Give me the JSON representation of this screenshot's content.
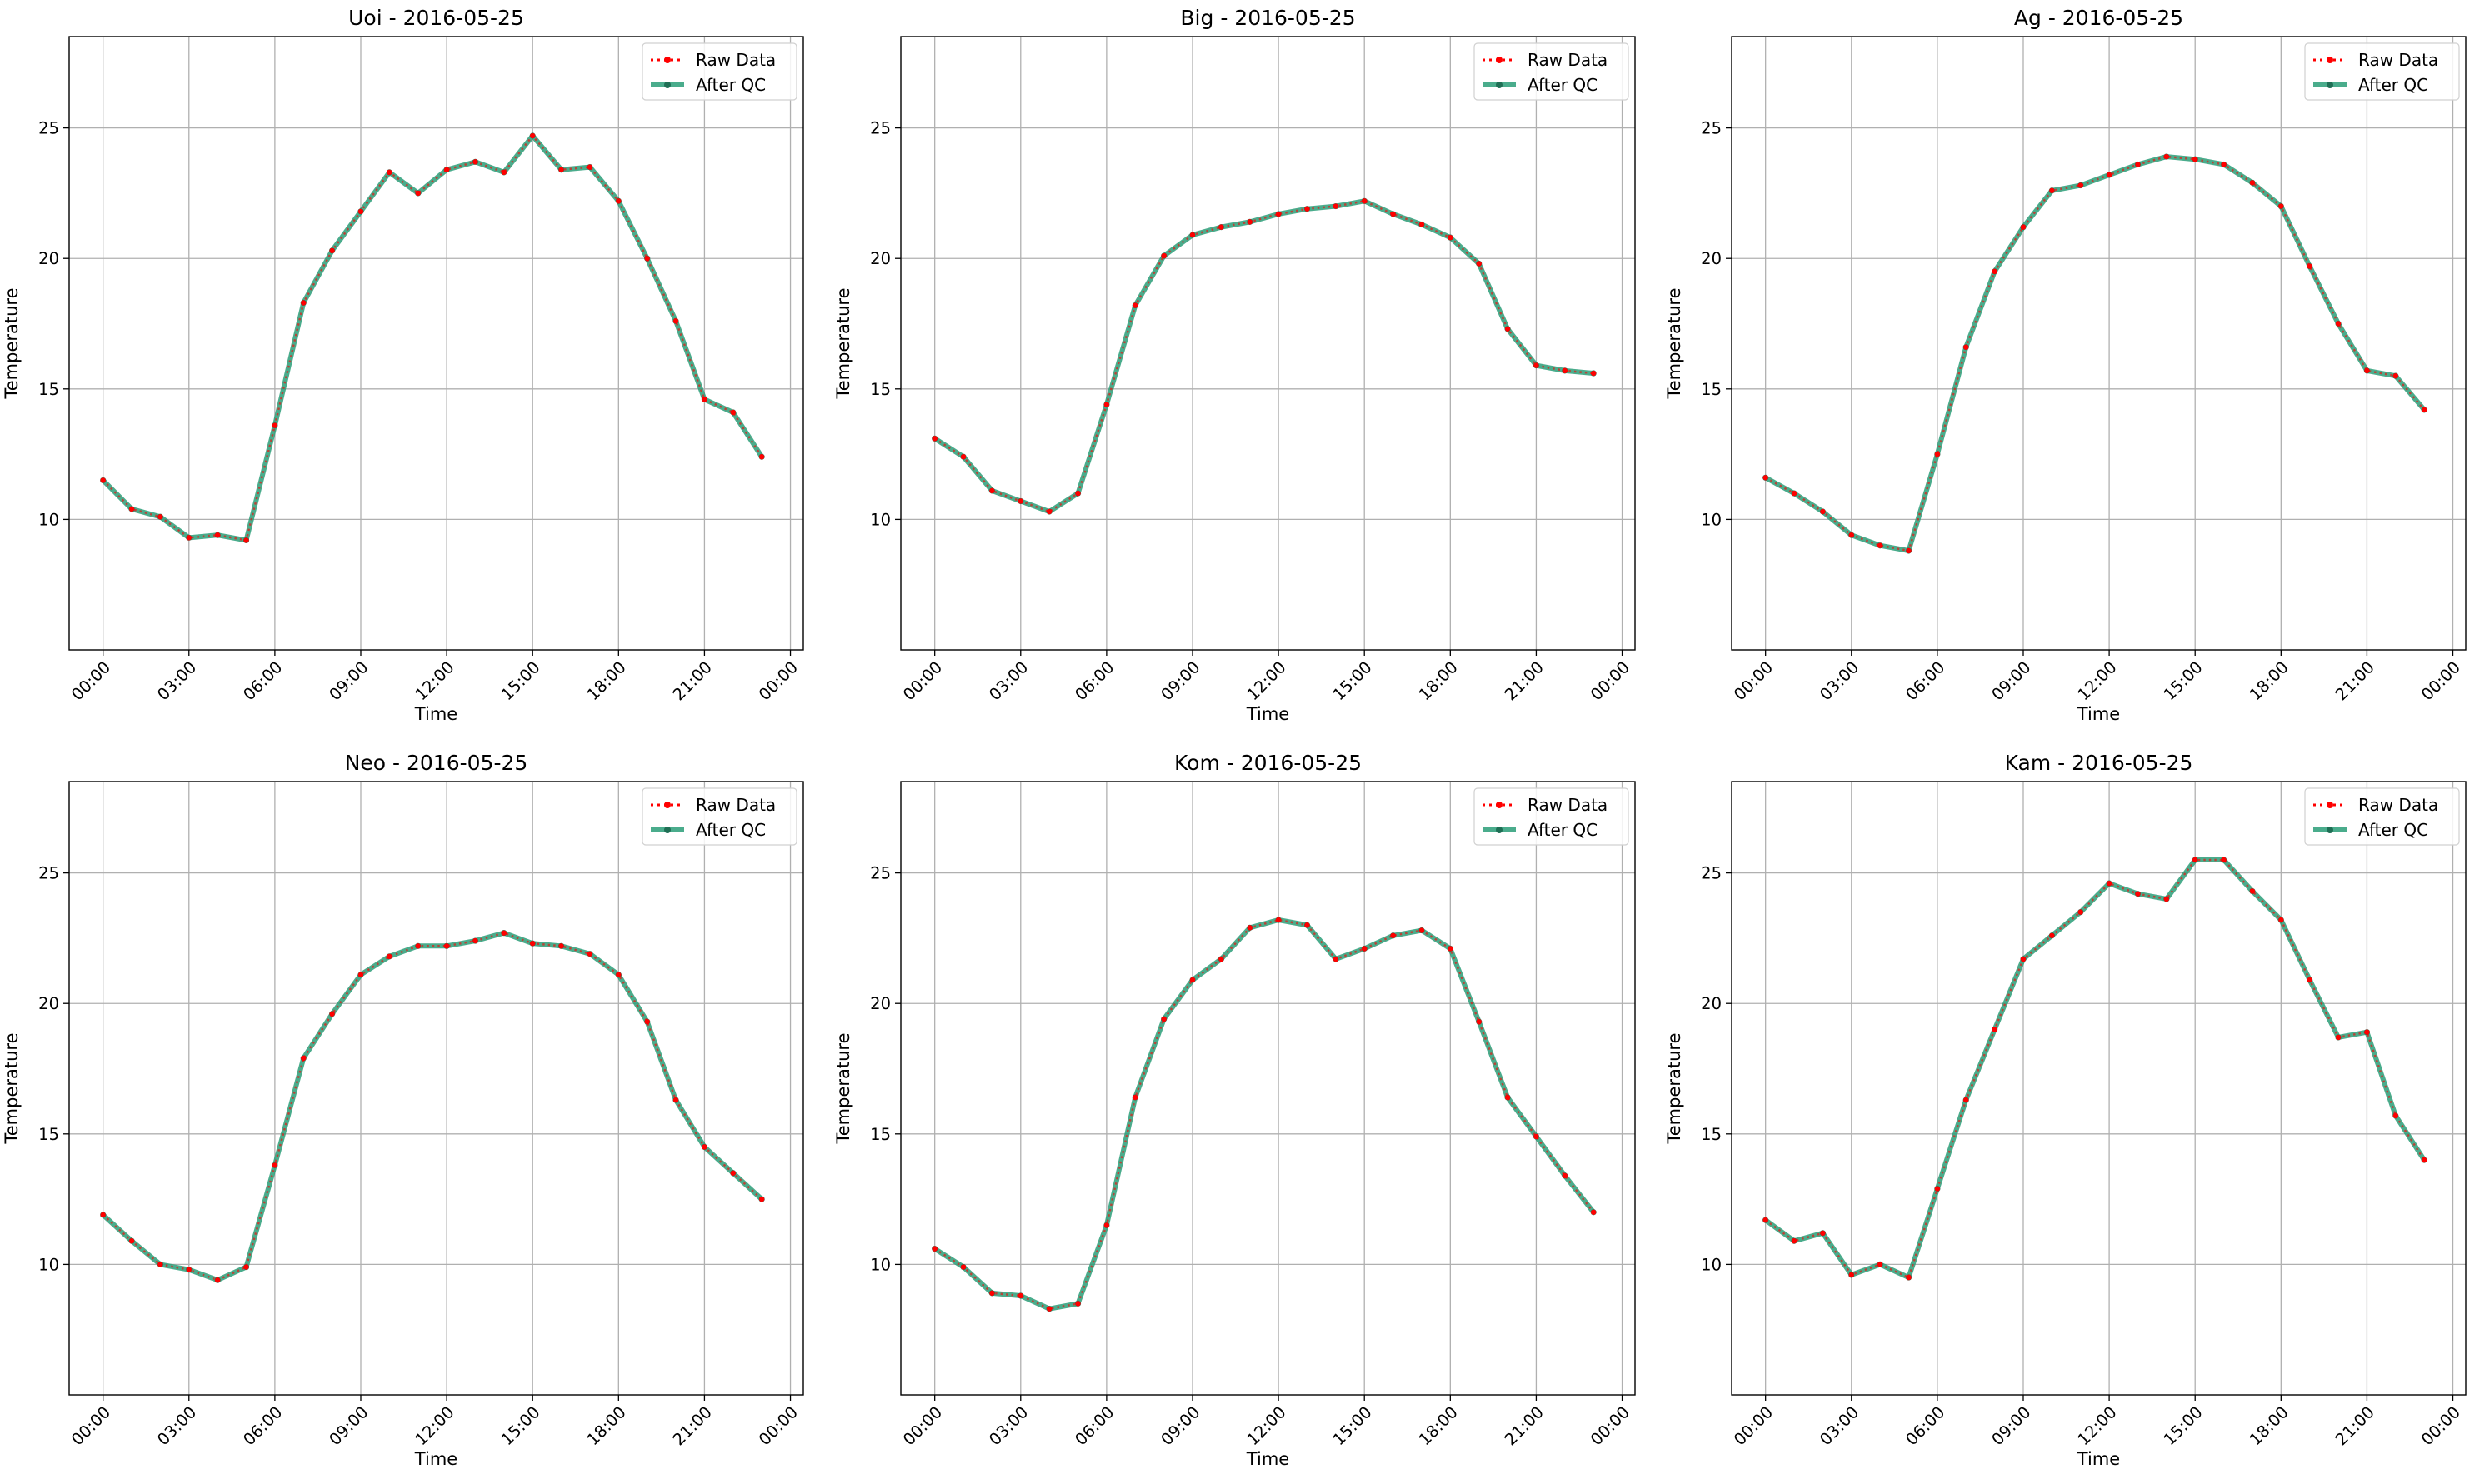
{
  "figure": {
    "background": "#ffffff"
  },
  "colors": {
    "raw": "#ff0000",
    "qc": "#2a9d78",
    "qc_marker": "#1f6f55",
    "grid": "#b0b0b0",
    "axes": "#000000",
    "legend_border": "#d0d0d0"
  },
  "legend": {
    "placement": "top-right",
    "entries": [
      "Raw Data",
      "After QC"
    ]
  },
  "chart_data": [
    {
      "type": "line",
      "title": "Uoi - 2016-05-25",
      "xlabel": "Time",
      "ylabel": "Temperature",
      "ylim": [
        5.0,
        28.5
      ],
      "xlim": [
        "2016-05-24 22:49",
        "2016-05-26 00:27"
      ],
      "grid": true,
      "x_ticks": [
        "00:00",
        "03:00",
        "06:00",
        "09:00",
        "12:00",
        "15:00",
        "18:00",
        "21:00",
        "00:00"
      ],
      "y_ticks": [
        10,
        15,
        20,
        25
      ],
      "x": [
        "00:00",
        "01:00",
        "02:00",
        "03:00",
        "04:00",
        "05:00",
        "06:00",
        "07:00",
        "08:00",
        "09:00",
        "10:00",
        "11:00",
        "12:00",
        "13:00",
        "14:00",
        "15:00",
        "16:00",
        "17:00",
        "18:00",
        "19:00",
        "20:00",
        "21:00",
        "22:00",
        "23:00"
      ],
      "series": [
        {
          "name": "Raw Data",
          "values": [
            11.5,
            10.4,
            10.1,
            9.3,
            9.4,
            9.2,
            13.6,
            18.3,
            20.3,
            21.8,
            23.3,
            22.5,
            23.4,
            23.7,
            23.3,
            24.7,
            23.4,
            23.5,
            22.2,
            20.0,
            17.6,
            14.6,
            14.1,
            12.4
          ]
        },
        {
          "name": "After QC",
          "values": [
            11.5,
            10.4,
            10.1,
            9.3,
            9.4,
            9.2,
            13.6,
            18.3,
            20.3,
            21.8,
            23.3,
            22.5,
            23.4,
            23.7,
            23.3,
            24.7,
            23.4,
            23.5,
            22.2,
            20.0,
            17.6,
            14.6,
            14.1,
            12.4
          ]
        }
      ]
    },
    {
      "type": "line",
      "title": "Big - 2016-05-25",
      "xlabel": "Time",
      "ylabel": "Temperature",
      "ylim": [
        5.0,
        28.5
      ],
      "xlim": [
        "2016-05-24 22:49",
        "2016-05-26 00:27"
      ],
      "grid": true,
      "x_ticks": [
        "00:00",
        "03:00",
        "06:00",
        "09:00",
        "12:00",
        "15:00",
        "18:00",
        "21:00",
        "00:00"
      ],
      "y_ticks": [
        10,
        15,
        20,
        25
      ],
      "x": [
        "00:00",
        "01:00",
        "02:00",
        "03:00",
        "04:00",
        "05:00",
        "06:00",
        "07:00",
        "08:00",
        "09:00",
        "10:00",
        "11:00",
        "12:00",
        "13:00",
        "14:00",
        "15:00",
        "16:00",
        "17:00",
        "18:00",
        "19:00",
        "20:00",
        "21:00",
        "22:00",
        "23:00"
      ],
      "series": [
        {
          "name": "Raw Data",
          "values": [
            13.1,
            12.4,
            11.1,
            10.7,
            10.3,
            11.0,
            14.4,
            18.2,
            20.1,
            20.9,
            21.2,
            21.4,
            21.7,
            21.9,
            22.0,
            22.2,
            21.7,
            21.3,
            20.8,
            19.8,
            17.3,
            15.9,
            15.7,
            15.6
          ]
        },
        {
          "name": "After QC",
          "values": [
            13.1,
            12.4,
            11.1,
            10.7,
            10.3,
            11.0,
            14.4,
            18.2,
            20.1,
            20.9,
            21.2,
            21.4,
            21.7,
            21.9,
            22.0,
            22.2,
            21.7,
            21.3,
            20.8,
            19.8,
            17.3,
            15.9,
            15.7,
            15.6
          ]
        }
      ]
    },
    {
      "type": "line",
      "title": "Ag - 2016-05-25",
      "xlabel": "Time",
      "ylabel": "Temperature",
      "ylim": [
        5.0,
        28.5
      ],
      "xlim": [
        "2016-05-24 22:49",
        "2016-05-26 00:27"
      ],
      "grid": true,
      "x_ticks": [
        "00:00",
        "03:00",
        "06:00",
        "09:00",
        "12:00",
        "15:00",
        "18:00",
        "21:00",
        "00:00"
      ],
      "y_ticks": [
        10,
        15,
        20,
        25
      ],
      "x": [
        "00:00",
        "01:00",
        "02:00",
        "03:00",
        "04:00",
        "05:00",
        "06:00",
        "07:00",
        "08:00",
        "09:00",
        "10:00",
        "11:00",
        "12:00",
        "13:00",
        "14:00",
        "15:00",
        "16:00",
        "17:00",
        "18:00",
        "19:00",
        "20:00",
        "21:00",
        "22:00",
        "23:00"
      ],
      "series": [
        {
          "name": "Raw Data",
          "values": [
            11.6,
            11.0,
            10.3,
            9.4,
            9.0,
            8.8,
            12.5,
            16.6,
            19.5,
            21.2,
            22.6,
            22.8,
            23.2,
            23.6,
            23.9,
            23.8,
            23.6,
            22.9,
            22.0,
            19.7,
            17.5,
            15.7,
            15.5,
            14.2
          ]
        },
        {
          "name": "After QC",
          "values": [
            11.6,
            11.0,
            10.3,
            9.4,
            9.0,
            8.8,
            12.5,
            16.6,
            19.5,
            21.2,
            22.6,
            22.8,
            23.2,
            23.6,
            23.9,
            23.8,
            23.6,
            22.9,
            22.0,
            19.7,
            17.5,
            15.7,
            15.5,
            14.2
          ]
        }
      ]
    },
    {
      "type": "line",
      "title": "Neo - 2016-05-25",
      "xlabel": "Time",
      "ylabel": "Temperature",
      "ylim": [
        5.0,
        28.5
      ],
      "xlim": [
        "2016-05-24 22:49",
        "2016-05-26 00:27"
      ],
      "grid": true,
      "x_ticks": [
        "00:00",
        "03:00",
        "06:00",
        "09:00",
        "12:00",
        "15:00",
        "18:00",
        "21:00",
        "00:00"
      ],
      "y_ticks": [
        10,
        15,
        20,
        25
      ],
      "x": [
        "00:00",
        "01:00",
        "02:00",
        "03:00",
        "04:00",
        "05:00",
        "06:00",
        "07:00",
        "08:00",
        "09:00",
        "10:00",
        "11:00",
        "12:00",
        "13:00",
        "14:00",
        "15:00",
        "16:00",
        "17:00",
        "18:00",
        "19:00",
        "20:00",
        "21:00",
        "22:00",
        "23:00"
      ],
      "series": [
        {
          "name": "Raw Data",
          "values": [
            11.9,
            10.9,
            10.0,
            9.8,
            9.4,
            9.9,
            13.8,
            17.9,
            19.6,
            21.1,
            21.8,
            22.2,
            22.2,
            22.4,
            22.7,
            22.3,
            22.2,
            21.9,
            21.1,
            19.3,
            16.3,
            14.5,
            13.5,
            12.5
          ]
        },
        {
          "name": "After QC",
          "values": [
            11.9,
            10.9,
            10.0,
            9.8,
            9.4,
            9.9,
            13.8,
            17.9,
            19.6,
            21.1,
            21.8,
            22.2,
            22.2,
            22.4,
            22.7,
            22.3,
            22.2,
            21.9,
            21.1,
            19.3,
            16.3,
            14.5,
            13.5,
            12.5
          ]
        }
      ]
    },
    {
      "type": "line",
      "title": "Kom - 2016-05-25",
      "xlabel": "Time",
      "ylabel": "Temperature",
      "ylim": [
        5.0,
        28.5
      ],
      "xlim": [
        "2016-05-24 22:49",
        "2016-05-26 00:27"
      ],
      "grid": true,
      "x_ticks": [
        "00:00",
        "03:00",
        "06:00",
        "09:00",
        "12:00",
        "15:00",
        "18:00",
        "21:00",
        "00:00"
      ],
      "y_ticks": [
        10,
        15,
        20,
        25
      ],
      "x": [
        "00:00",
        "01:00",
        "02:00",
        "03:00",
        "04:00",
        "05:00",
        "06:00",
        "07:00",
        "08:00",
        "09:00",
        "10:00",
        "11:00",
        "12:00",
        "13:00",
        "14:00",
        "15:00",
        "16:00",
        "17:00",
        "18:00",
        "19:00",
        "20:00",
        "21:00",
        "22:00",
        "23:00"
      ],
      "series": [
        {
          "name": "Raw Data",
          "values": [
            10.6,
            9.9,
            8.9,
            8.8,
            8.3,
            8.5,
            11.5,
            16.4,
            19.4,
            20.9,
            21.7,
            22.9,
            23.2,
            23.0,
            21.7,
            22.1,
            22.6,
            22.8,
            22.1,
            19.3,
            16.4,
            14.9,
            13.4,
            12.0
          ]
        },
        {
          "name": "After QC",
          "values": [
            10.6,
            9.9,
            8.9,
            8.8,
            8.3,
            8.5,
            11.5,
            16.4,
            19.4,
            20.9,
            21.7,
            22.9,
            23.2,
            23.0,
            21.7,
            22.1,
            22.6,
            22.8,
            22.1,
            19.3,
            16.4,
            14.9,
            13.4,
            12.0
          ]
        }
      ]
    },
    {
      "type": "line",
      "title": "Kam - 2016-05-25",
      "xlabel": "Time",
      "ylabel": "Temperature",
      "ylim": [
        5.0,
        28.5
      ],
      "xlim": [
        "2016-05-24 22:49",
        "2016-05-26 00:27"
      ],
      "grid": true,
      "x_ticks": [
        "00:00",
        "03:00",
        "06:00",
        "09:00",
        "12:00",
        "15:00",
        "18:00",
        "21:00",
        "00:00"
      ],
      "y_ticks": [
        10,
        15,
        20,
        25
      ],
      "x": [
        "00:00",
        "01:00",
        "02:00",
        "03:00",
        "04:00",
        "05:00",
        "06:00",
        "07:00",
        "08:00",
        "09:00",
        "10:00",
        "11:00",
        "12:00",
        "13:00",
        "14:00",
        "15:00",
        "16:00",
        "17:00",
        "18:00",
        "19:00",
        "20:00",
        "21:00",
        "22:00",
        "23:00"
      ],
      "series": [
        {
          "name": "Raw Data",
          "values": [
            11.7,
            10.9,
            11.2,
            9.6,
            10.0,
            9.5,
            12.9,
            16.3,
            19.0,
            21.7,
            22.6,
            23.5,
            24.6,
            24.2,
            24.0,
            25.5,
            25.5,
            24.3,
            23.2,
            20.9,
            18.7,
            18.9,
            15.7,
            14.0
          ]
        },
        {
          "name": "After QC",
          "values": [
            11.7,
            10.9,
            11.2,
            9.6,
            10.0,
            9.5,
            12.9,
            16.3,
            19.0,
            21.7,
            22.6,
            23.5,
            24.6,
            24.2,
            24.0,
            25.5,
            25.5,
            24.3,
            23.2,
            20.9,
            18.7,
            18.9,
            15.7,
            14.0
          ]
        }
      ]
    }
  ]
}
